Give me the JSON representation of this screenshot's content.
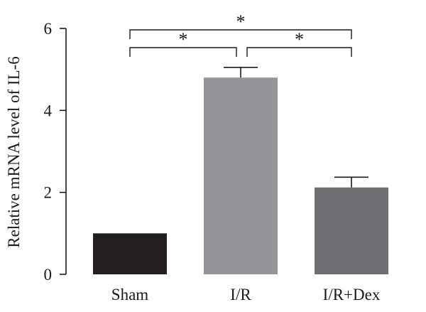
{
  "chart_data": {
    "type": "bar",
    "categories": [
      "Sham",
      "I/R",
      "I/R+Dex"
    ],
    "values": [
      1.0,
      4.8,
      2.12
    ],
    "errors": [
      0.0,
      0.25,
      0.25
    ],
    "colors": [
      "#231f20",
      "#939598",
      "#6d6e71"
    ],
    "ylabel": "Relative mRNA level of IL-6",
    "xlabel": "",
    "title": "",
    "ylim": [
      0,
      6
    ],
    "yticks": [
      0,
      2,
      4,
      6
    ],
    "ytick_labels": [
      "0",
      "2",
      "4",
      "6"
    ],
    "grid": false,
    "significance": [
      {
        "from": 0,
        "to": 1,
        "label": "*",
        "level": 1
      },
      {
        "from": 1,
        "to": 2,
        "label": "*",
        "level": 1
      },
      {
        "from": 0,
        "to": 2,
        "label": "*",
        "level": 2
      }
    ]
  }
}
